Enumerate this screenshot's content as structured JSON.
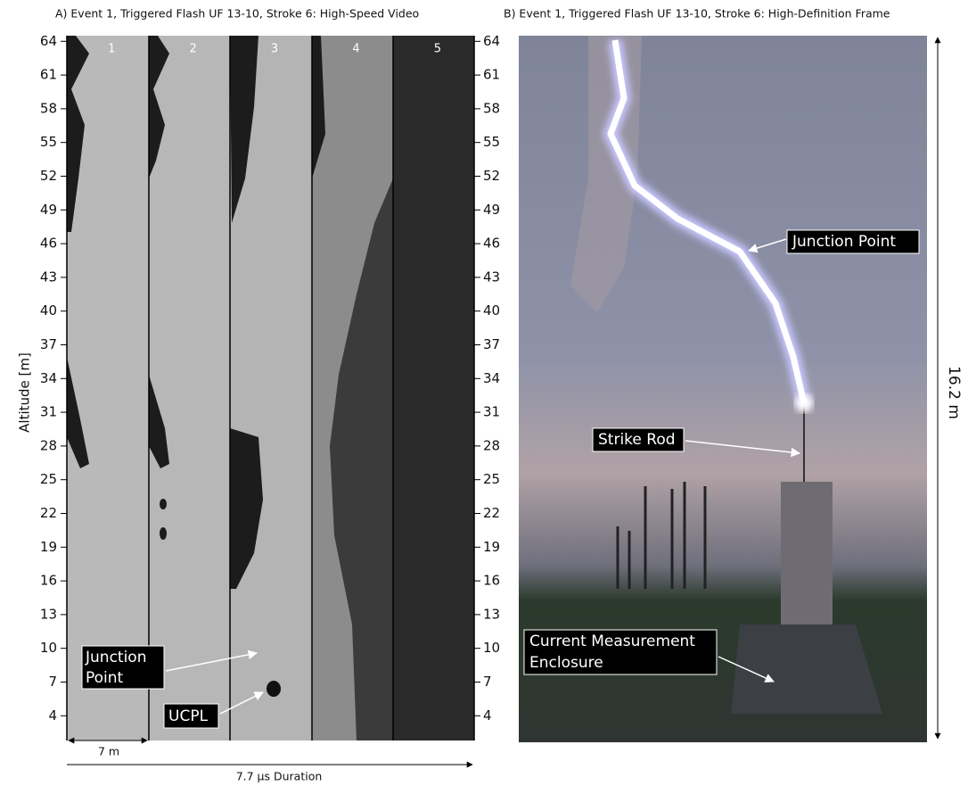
{
  "panel_a": {
    "title": "A) Event 1, Triggered Flash UF 13-10, Stroke 6:  High-Speed Video",
    "frames": [
      "1",
      "2",
      "3",
      "4",
      "5"
    ],
    "axis_label": "Altitude [m]",
    "ylim": [
      1.8,
      64.5
    ],
    "yticks": [
      4,
      7,
      10,
      13,
      16,
      19,
      22,
      25,
      28,
      31,
      34,
      37,
      40,
      43,
      46,
      49,
      52,
      55,
      58,
      61,
      64
    ],
    "junction_label": [
      "Junction",
      "Point"
    ],
    "ucpl_label": "UCPL",
    "scale_label": "7 m",
    "duration_label": "7.7 μs Duration"
  },
  "panel_b": {
    "title": "B) Event 1, Triggered Flash UF 13-10, Stroke 6:  High-Definition Frame",
    "junction_label": "Junction Point",
    "rod_label": "Strike Rod",
    "enclosure_label": [
      "Current Measurement",
      "Enclosure"
    ],
    "height_label": "16.2 m"
  }
}
